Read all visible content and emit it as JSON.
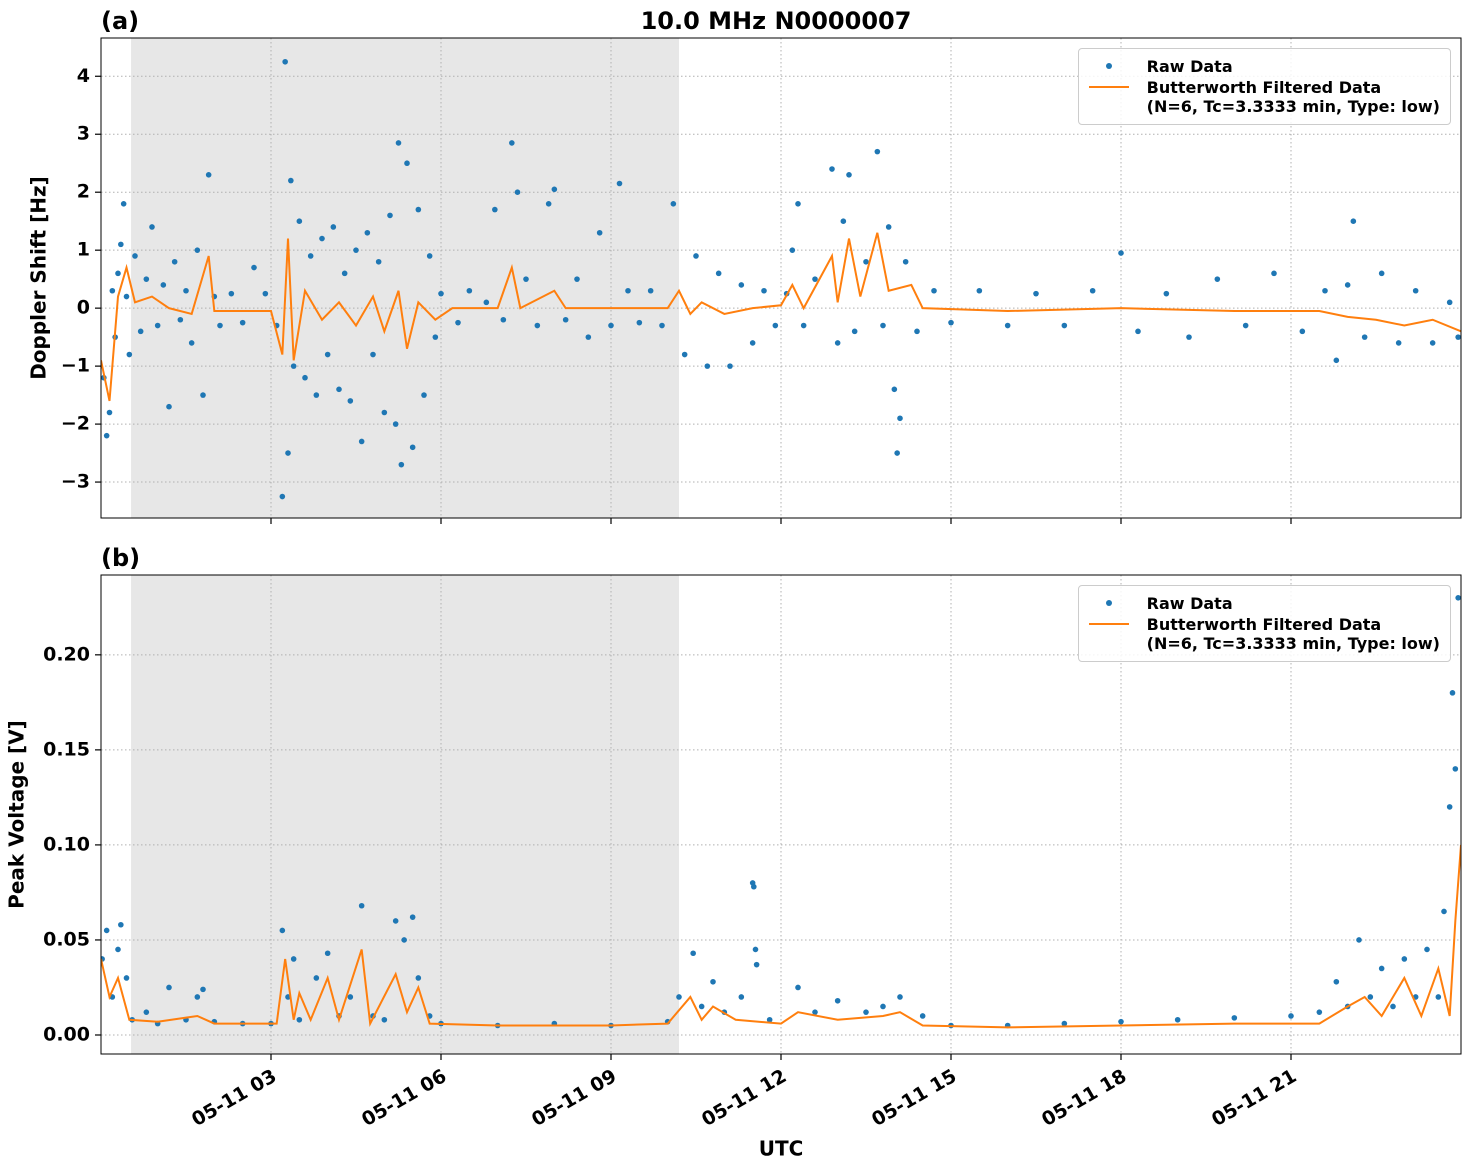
{
  "title": "10.0 MHz N0000007",
  "chart_data": [
    {
      "type": "combo",
      "panel_label": "(a)",
      "ylabel": "Doppler Shift [Hz]",
      "xlim": [
        0,
        24
      ],
      "xticks": [
        3,
        6,
        9,
        12,
        15,
        18,
        21
      ],
      "ylim": [
        -3.62,
        4.66
      ],
      "yticks": [
        {
          "value": -3,
          "label": "−3"
        },
        {
          "value": -2,
          "label": "−2"
        },
        {
          "value": -1,
          "label": "−1"
        },
        0,
        1,
        2,
        3,
        4
      ],
      "grid": true,
      "legend": "upper right",
      "shaded_span": [
        0.53,
        10.2
      ],
      "shaded_color": "#e7e7e7",
      "series": [
        {
          "name": "Raw Data",
          "type": "scatter",
          "color": "#1f77b4",
          "x": [
            0.05,
            0.1,
            0.15,
            0.2,
            0.25,
            0.3,
            0.35,
            0.4,
            0.45,
            0.5,
            0.6,
            0.7,
            0.8,
            0.9,
            1.0,
            1.1,
            1.2,
            1.3,
            1.4,
            1.5,
            1.6,
            1.7,
            1.8,
            1.9,
            2.0,
            2.1,
            2.3,
            2.5,
            2.7,
            2.9,
            3.1,
            3.2,
            3.25,
            3.3,
            3.35,
            3.4,
            3.5,
            3.6,
            3.7,
            3.8,
            3.9,
            4.0,
            4.1,
            4.2,
            4.3,
            4.4,
            4.5,
            4.6,
            4.7,
            4.8,
            4.9,
            5.0,
            5.1,
            5.2,
            5.25,
            5.3,
            5.4,
            5.5,
            5.6,
            5.7,
            5.8,
            5.9,
            6.0,
            6.3,
            6.5,
            6.8,
            6.95,
            7.1,
            7.25,
            7.35,
            7.5,
            7.7,
            7.9,
            8.0,
            8.2,
            8.4,
            8.6,
            8.8,
            9.0,
            9.15,
            9.3,
            9.5,
            9.7,
            9.9,
            10.1,
            10.3,
            10.5,
            10.7,
            10.9,
            11.1,
            11.3,
            11.5,
            11.7,
            11.9,
            12.1,
            12.2,
            12.3,
            12.4,
            12.6,
            12.9,
            13.0,
            13.1,
            13.2,
            13.3,
            13.5,
            13.7,
            13.8,
            13.9,
            14.0,
            14.05,
            14.1,
            14.2,
            14.4,
            14.7,
            15.0,
            15.5,
            16.0,
            16.5,
            17.0,
            17.5,
            18.0,
            18.3,
            18.8,
            19.2,
            19.7,
            20.2,
            20.7,
            21.2,
            21.6,
            21.8,
            22.0,
            22.1,
            22.3,
            22.6,
            22.9,
            23.2,
            23.5,
            23.8,
            23.95
          ],
          "values": [
            -1.2,
            -2.2,
            -1.8,
            0.3,
            -0.5,
            0.6,
            1.1,
            1.8,
            0.2,
            -0.8,
            0.9,
            -0.4,
            0.5,
            1.4,
            -0.3,
            0.4,
            -1.7,
            0.8,
            -0.2,
            0.3,
            -0.6,
            1.0,
            -1.5,
            2.3,
            0.2,
            -0.3,
            0.25,
            -0.25,
            0.7,
            0.25,
            -0.3,
            -3.25,
            4.25,
            -2.5,
            2.2,
            -1.0,
            1.5,
            -1.2,
            0.9,
            -1.5,
            1.2,
            -0.8,
            1.4,
            -1.4,
            0.6,
            -1.6,
            1.0,
            -2.3,
            1.3,
            -0.8,
            0.8,
            -1.8,
            1.6,
            -2.0,
            2.85,
            -2.7,
            2.5,
            -2.4,
            1.7,
            -1.5,
            0.9,
            -0.5,
            0.25,
            -0.25,
            0.3,
            0.1,
            1.7,
            -0.2,
            2.85,
            2.0,
            0.5,
            -0.3,
            1.8,
            2.05,
            -0.2,
            0.5,
            -0.5,
            1.3,
            -0.3,
            2.15,
            0.3,
            -0.25,
            0.3,
            -0.3,
            1.8,
            -0.8,
            0.9,
            -1.0,
            0.6,
            -1.0,
            0.4,
            -0.6,
            0.3,
            -0.3,
            0.25,
            1.0,
            1.8,
            -0.3,
            0.5,
            2.4,
            -0.6,
            1.5,
            2.3,
            -0.4,
            0.8,
            2.7,
            -0.3,
            1.4,
            -1.4,
            -2.5,
            -1.9,
            0.8,
            -0.4,
            0.3,
            -0.25,
            0.3,
            -0.3,
            0.25,
            -0.3,
            0.3,
            0.95,
            -0.4,
            0.25,
            -0.5,
            0.5,
            -0.3,
            0.6,
            -0.4,
            0.3,
            -0.9,
            0.4,
            1.5,
            -0.5,
            0.6,
            -0.6,
            0.3,
            -0.6,
            0.1,
            -0.5
          ]
        },
        {
          "name": "Butterworth Filtered Data\n(N=6, Tc=3.3333 min, Type: low)",
          "type": "line",
          "color": "#ff7f0e",
          "x": [
            0,
            0.15,
            0.3,
            0.45,
            0.6,
            0.9,
            1.2,
            1.6,
            1.9,
            2.0,
            3.0,
            3.2,
            3.3,
            3.4,
            3.6,
            3.9,
            4.2,
            4.5,
            4.8,
            5.0,
            5.25,
            5.4,
            5.6,
            5.9,
            6.2,
            7.0,
            7.25,
            7.4,
            8.0,
            8.2,
            9.0,
            10.0,
            10.2,
            10.4,
            10.6,
            11.0,
            11.5,
            12.0,
            12.2,
            12.4,
            12.9,
            13.0,
            13.2,
            13.4,
            13.7,
            13.9,
            14.3,
            14.5,
            16.0,
            18.0,
            20.0,
            21.5,
            22.0,
            22.5,
            23.0,
            23.5,
            24.0
          ],
          "values": [
            -0.9,
            -1.6,
            0.2,
            0.7,
            0.1,
            0.2,
            0.0,
            -0.1,
            0.9,
            -0.05,
            -0.05,
            -0.8,
            1.2,
            -0.9,
            0.3,
            -0.2,
            0.1,
            -0.3,
            0.2,
            -0.4,
            0.3,
            -0.7,
            0.1,
            -0.2,
            0.0,
            0.0,
            0.7,
            0.0,
            0.3,
            0.0,
            0.0,
            0.0,
            0.3,
            -0.1,
            0.1,
            -0.1,
            0.0,
            0.05,
            0.4,
            0.0,
            0.9,
            0.1,
            1.2,
            0.2,
            1.3,
            0.3,
            0.4,
            0.0,
            -0.05,
            0.0,
            -0.05,
            -0.05,
            -0.15,
            -0.2,
            -0.3,
            -0.2,
            -0.4
          ]
        }
      ]
    },
    {
      "type": "combo",
      "panel_label": "(b)",
      "ylabel": "Peak Voltage [V]",
      "xlabel": "UTC",
      "xlim": [
        0,
        24
      ],
      "xticks": [
        {
          "value": 3,
          "label": "05-11 03"
        },
        {
          "value": 6,
          "label": "05-11 06"
        },
        {
          "value": 9,
          "label": "05-11 09"
        },
        {
          "value": 12,
          "label": "05-11 12"
        },
        {
          "value": 15,
          "label": "05-11 15"
        },
        {
          "value": 18,
          "label": "05-11 18"
        },
        {
          "value": 21,
          "label": "05-11 21"
        }
      ],
      "ylim": [
        -0.01,
        0.242
      ],
      "yticks": [
        {
          "value": 0,
          "label": "0.00"
        },
        0.05,
        {
          "value": 0.1,
          "label": "0.10"
        },
        0.15,
        {
          "value": 0.2,
          "label": "0.20"
        }
      ],
      "grid": true,
      "legend": "upper right",
      "shaded_span": [
        0.53,
        10.2
      ],
      "shaded_color": "#e7e7e7",
      "series": [
        {
          "name": "Raw Data",
          "type": "scatter",
          "color": "#1f77b4",
          "x": [
            0.02,
            0.1,
            0.2,
            0.3,
            0.35,
            0.45,
            0.55,
            0.8,
            1.0,
            1.2,
            1.5,
            1.7,
            1.8,
            2.0,
            2.5,
            3.0,
            3.2,
            3.3,
            3.4,
            3.5,
            3.8,
            4.0,
            4.2,
            4.4,
            4.6,
            4.8,
            5.0,
            5.2,
            5.35,
            5.5,
            5.6,
            5.8,
            6.0,
            7.0,
            8.0,
            9.0,
            10.0,
            10.2,
            10.45,
            10.6,
            10.8,
            11.0,
            11.3,
            11.5,
            11.52,
            11.55,
            11.57,
            11.8,
            12.3,
            12.6,
            13.0,
            13.5,
            13.8,
            14.1,
            14.5,
            15.0,
            16.0,
            17.0,
            18.0,
            19.0,
            20.0,
            21.0,
            21.5,
            21.8,
            22.0,
            22.2,
            22.4,
            22.6,
            22.8,
            23.0,
            23.2,
            23.4,
            23.6,
            23.7,
            23.8,
            23.85,
            23.9,
            23.95
          ],
          "values": [
            0.04,
            0.055,
            0.02,
            0.045,
            0.058,
            0.03,
            0.008,
            0.012,
            0.006,
            0.025,
            0.008,
            0.02,
            0.024,
            0.007,
            0.006,
            0.006,
            0.055,
            0.02,
            0.04,
            0.008,
            0.03,
            0.043,
            0.01,
            0.02,
            0.068,
            0.01,
            0.008,
            0.06,
            0.05,
            0.062,
            0.03,
            0.01,
            0.006,
            0.005,
            0.006,
            0.005,
            0.007,
            0.02,
            0.043,
            0.015,
            0.028,
            0.012,
            0.02,
            0.08,
            0.078,
            0.045,
            0.037,
            0.008,
            0.025,
            0.012,
            0.018,
            0.012,
            0.015,
            0.02,
            0.01,
            0.005,
            0.005,
            0.006,
            0.007,
            0.008,
            0.009,
            0.01,
            0.012,
            0.028,
            0.015,
            0.05,
            0.02,
            0.035,
            0.015,
            0.04,
            0.02,
            0.045,
            0.02,
            0.065,
            0.12,
            0.18,
            0.14,
            0.23
          ]
        },
        {
          "name": "Butterworth Filtered Data\n(N=6, Tc=3.3333 min, Type: low)",
          "type": "line",
          "color": "#ff7f0e",
          "x": [
            0,
            0.15,
            0.3,
            0.5,
            1.0,
            1.7,
            2.0,
            3.1,
            3.25,
            3.4,
            3.5,
            3.7,
            4.0,
            4.2,
            4.6,
            4.75,
            5.2,
            5.4,
            5.6,
            5.8,
            7.0,
            9.0,
            10.0,
            10.4,
            10.6,
            10.8,
            11.2,
            12.0,
            12.3,
            13.0,
            13.8,
            14.1,
            14.5,
            16.0,
            18.0,
            20.0,
            21.5,
            22.0,
            22.3,
            22.6,
            23.0,
            23.3,
            23.6,
            23.8,
            23.9,
            24.0
          ],
          "values": [
            0.04,
            0.02,
            0.03,
            0.008,
            0.007,
            0.01,
            0.006,
            0.006,
            0.04,
            0.008,
            0.022,
            0.008,
            0.03,
            0.008,
            0.045,
            0.006,
            0.032,
            0.012,
            0.025,
            0.006,
            0.005,
            0.005,
            0.006,
            0.02,
            0.008,
            0.015,
            0.008,
            0.006,
            0.012,
            0.008,
            0.01,
            0.012,
            0.005,
            0.004,
            0.005,
            0.006,
            0.006,
            0.015,
            0.02,
            0.01,
            0.03,
            0.01,
            0.035,
            0.01,
            0.06,
            0.1
          ]
        }
      ]
    }
  ]
}
